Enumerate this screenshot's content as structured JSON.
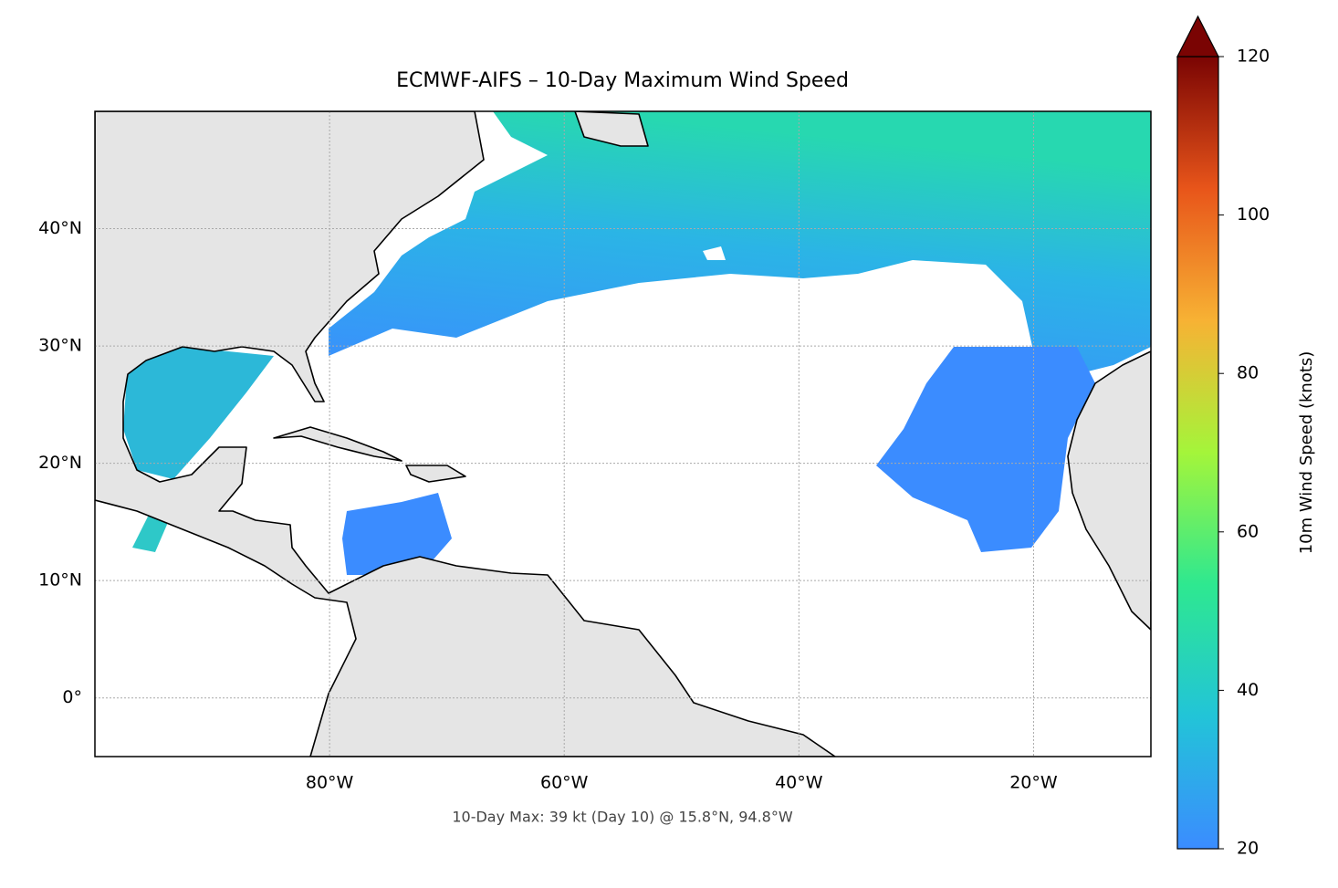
{
  "chart_data": {
    "type": "map",
    "title": "ECMWF-AIFS – 10-Day Maximum Wind Speed",
    "annotation": "10-Day Max: 39 kt (Day 10) @ 15.8°N, 94.8°W",
    "xlim": [
      -100,
      -10
    ],
    "ylim": [
      -5,
      50
    ],
    "xticks": [
      {
        "value": -80,
        "label": "80°W"
      },
      {
        "value": -60,
        "label": "60°W"
      },
      {
        "value": -40,
        "label": "40°W"
      },
      {
        "value": -20,
        "label": "20°W"
      }
    ],
    "yticks": [
      {
        "value": 0,
        "label": "0°"
      },
      {
        "value": 10,
        "label": "10°N"
      },
      {
        "value": 20,
        "label": "20°N"
      },
      {
        "value": 30,
        "label": "30°N"
      },
      {
        "value": 40,
        "label": "40°N"
      }
    ],
    "grid": true,
    "colorbar": {
      "label": "10m Wind Speed (knots)",
      "lim": [
        20,
        120
      ],
      "ticks": [
        20,
        40,
        60,
        80,
        100,
        120
      ],
      "colors": [
        "#3b8cff",
        "#22c4d8",
        "#2ee890",
        "#a4f53a",
        "#f7b234",
        "#e8551a",
        "#7a0403"
      ],
      "extend": "max"
    }
  }
}
